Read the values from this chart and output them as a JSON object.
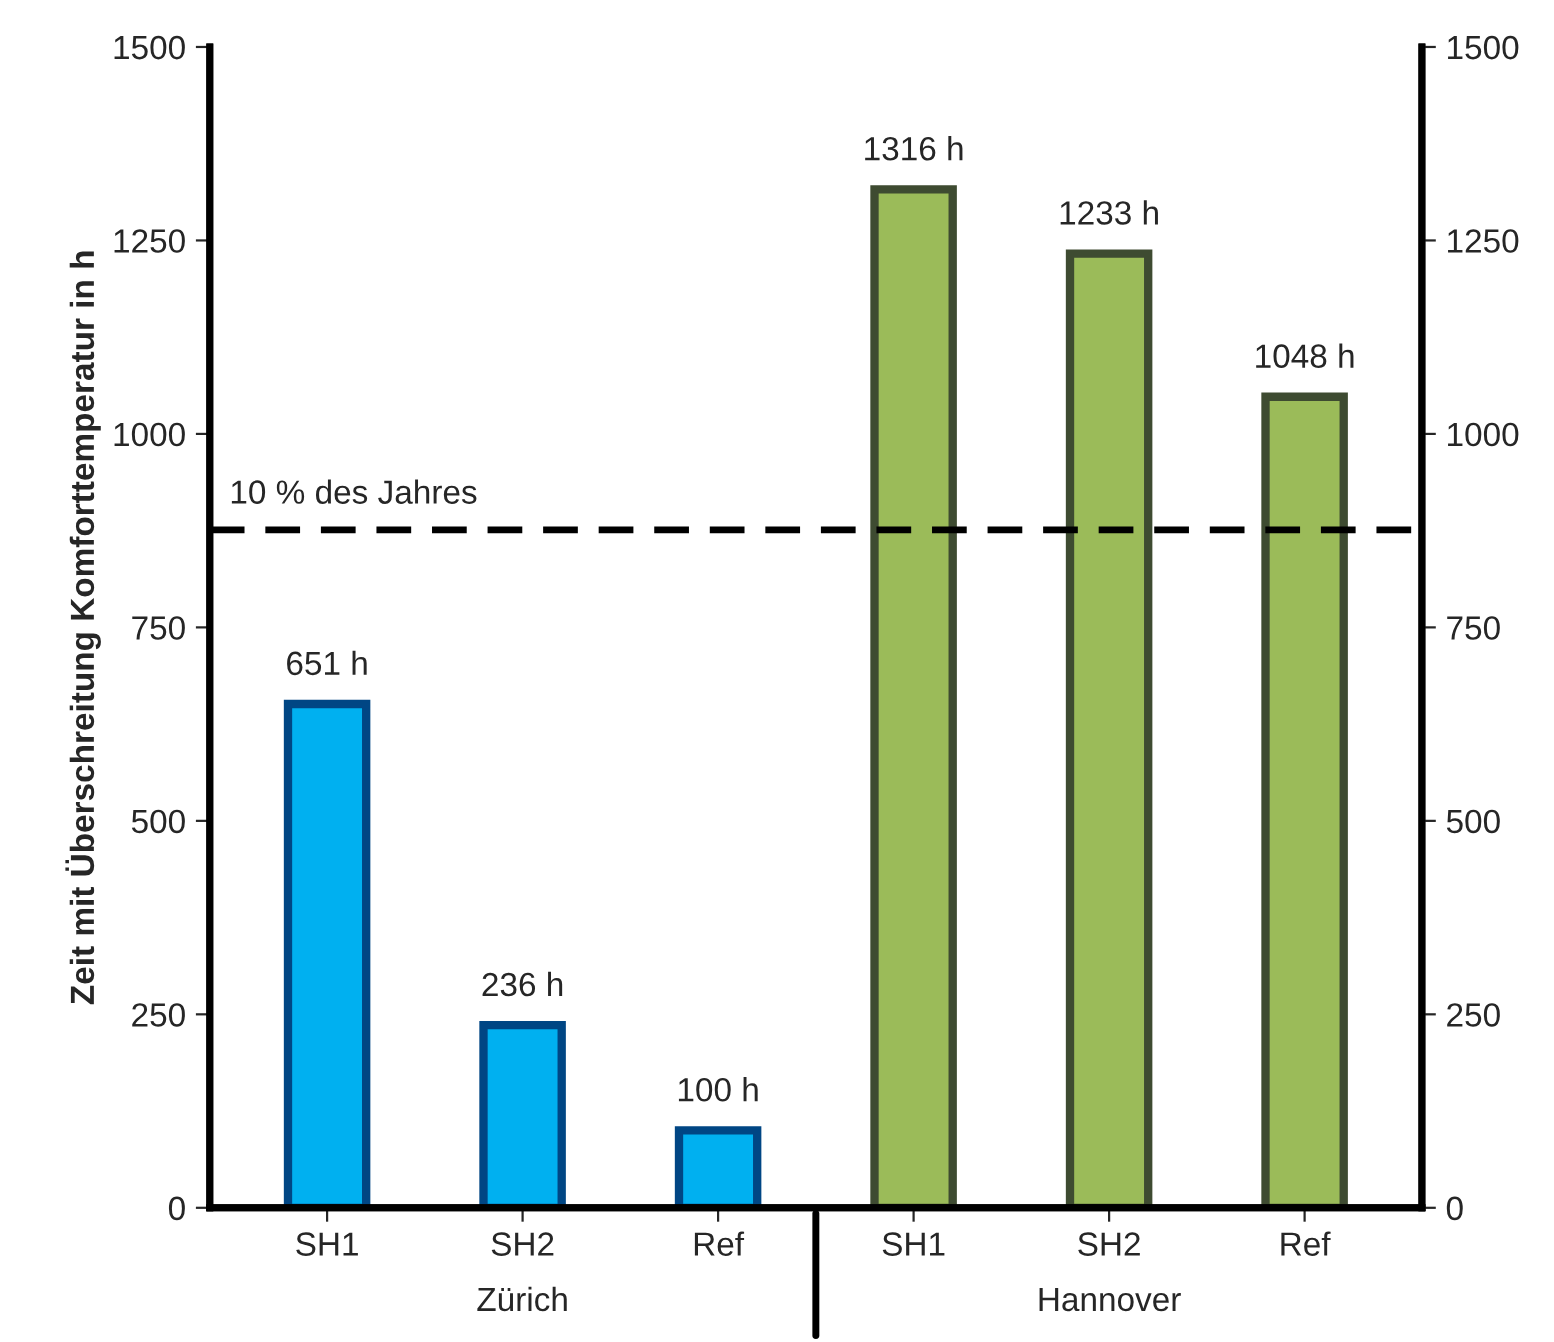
{
  "chart_data": {
    "type": "bar",
    "ylabel": "Zeit mit Überschreitung Komforttemperatur in h",
    "categories": [
      "SH1",
      "SH2",
      "Ref",
      "SH1",
      "SH2",
      "Ref"
    ],
    "values": [
      651,
      236,
      100,
      1316,
      1233,
      1048
    ],
    "colors": [
      "#00b0f0",
      "#00b0f0",
      "#00b0f0",
      "#9bbb59",
      "#9bbb59",
      "#9bbb59"
    ],
    "value_labels": [
      "651 h",
      "236 h",
      "100 h",
      "1316 h",
      "1233 h",
      "1048 h"
    ],
    "ylim": [
      0,
      1500
    ],
    "yticks": [
      0,
      250,
      500,
      750,
      1000,
      1250,
      1500
    ],
    "y2lim": [
      0,
      1500
    ],
    "y2ticks": [
      0,
      250,
      500,
      750,
      1000,
      1250,
      1500
    ],
    "ref_lines": [
      {
        "axis": "y",
        "value": 876,
        "label": "10 % des Jahres",
        "color": "#000000",
        "line_style": "dashed"
      }
    ],
    "annotations": [
      "Zürich",
      "Hannover"
    ],
    "grid": false
  }
}
